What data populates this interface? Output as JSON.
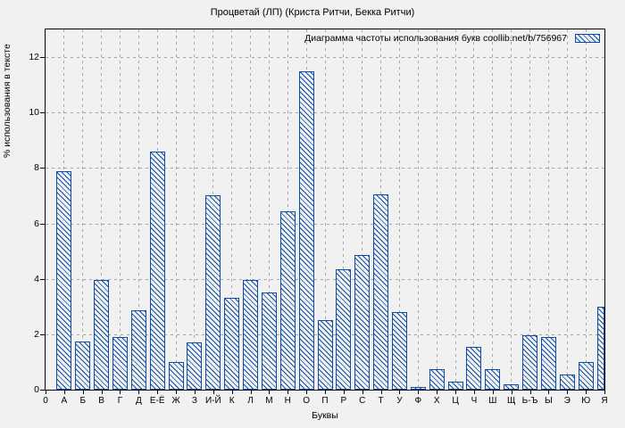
{
  "title": "Процветай (ЛП) (Криста Ритчи, Бекка Ритчи)",
  "legend": {
    "label": "Диаграмма частоты использования букв coollib.net/b/756967"
  },
  "axes": {
    "ylabel": "% использования в тексте",
    "xlabel": "Буквы",
    "origin_label": "0",
    "yticks": [
      0,
      2,
      4,
      6,
      8,
      10,
      12
    ]
  },
  "colors": {
    "bar": "#0e4ca5",
    "background": "#f0f1f0",
    "grid": "#a6a6a6",
    "frame": "#000000"
  },
  "chart_data": {
    "type": "bar",
    "title": "Процветай (ЛП) (Криста Ритчи, Бекка Ритчи)",
    "legend": "Диаграмма частоты использования букв coollib.net/b/756967",
    "xlabel": "Буквы",
    "ylabel": "% использования в тексте",
    "ylim": [
      0,
      13
    ],
    "yticks": [
      0,
      2,
      4,
      6,
      8,
      10,
      12
    ],
    "grid": true,
    "legend_position": "top-right-inside",
    "hatch": "diagonal",
    "categories": [
      "А",
      "Б",
      "В",
      "Г",
      "Д",
      "Е-Ё",
      "Ж",
      "З",
      "И-Й",
      "К",
      "Л",
      "М",
      "Н",
      "О",
      "П",
      "Р",
      "С",
      "Т",
      "У",
      "Ф",
      "Х",
      "Ц",
      "Ч",
      "Ш",
      "Щ",
      "Ь-Ъ",
      "Ы",
      "Э",
      "Ю",
      "Я"
    ],
    "values": [
      7.9,
      1.75,
      3.95,
      1.9,
      2.85,
      8.6,
      1.0,
      1.7,
      7.0,
      3.3,
      3.95,
      3.5,
      6.45,
      11.5,
      2.5,
      4.35,
      4.85,
      7.05,
      2.8,
      0.1,
      0.75,
      0.3,
      1.55,
      0.75,
      0.2,
      1.95,
      1.9,
      0.55,
      1.0,
      3.0
    ]
  }
}
